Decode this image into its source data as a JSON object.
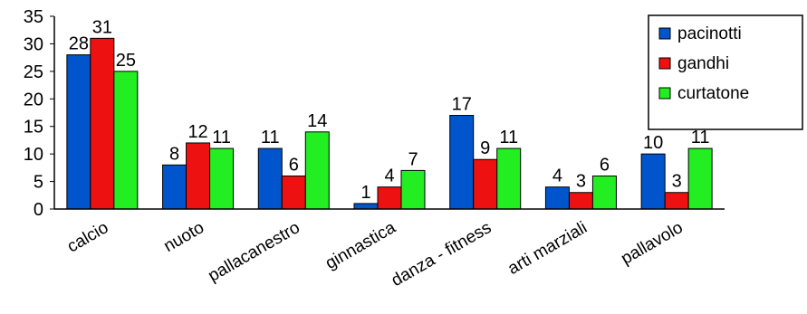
{
  "chart_data": {
    "type": "bar",
    "title": "",
    "xlabel": "",
    "ylabel": "",
    "ylim": [
      0,
      35
    ],
    "yticks": [
      0,
      5,
      10,
      15,
      20,
      25,
      30,
      35
    ],
    "categories": [
      "calcio",
      "nuoto",
      "pallacanestro",
      "ginnastica",
      "danza - fitness",
      "arti marziali",
      "pallavolo"
    ],
    "series": [
      {
        "name": "pacinotti",
        "color": "#0055cc",
        "values": [
          28,
          8,
          11,
          1,
          17,
          4,
          10
        ]
      },
      {
        "name": "gandhi",
        "color": "#ee1111",
        "values": [
          31,
          12,
          6,
          4,
          9,
          3,
          3
        ]
      },
      {
        "name": "curtatone",
        "color": "#22ee22",
        "values": [
          25,
          11,
          14,
          7,
          11,
          6,
          11
        ]
      }
    ],
    "legend": "top-right",
    "grid": false
  }
}
